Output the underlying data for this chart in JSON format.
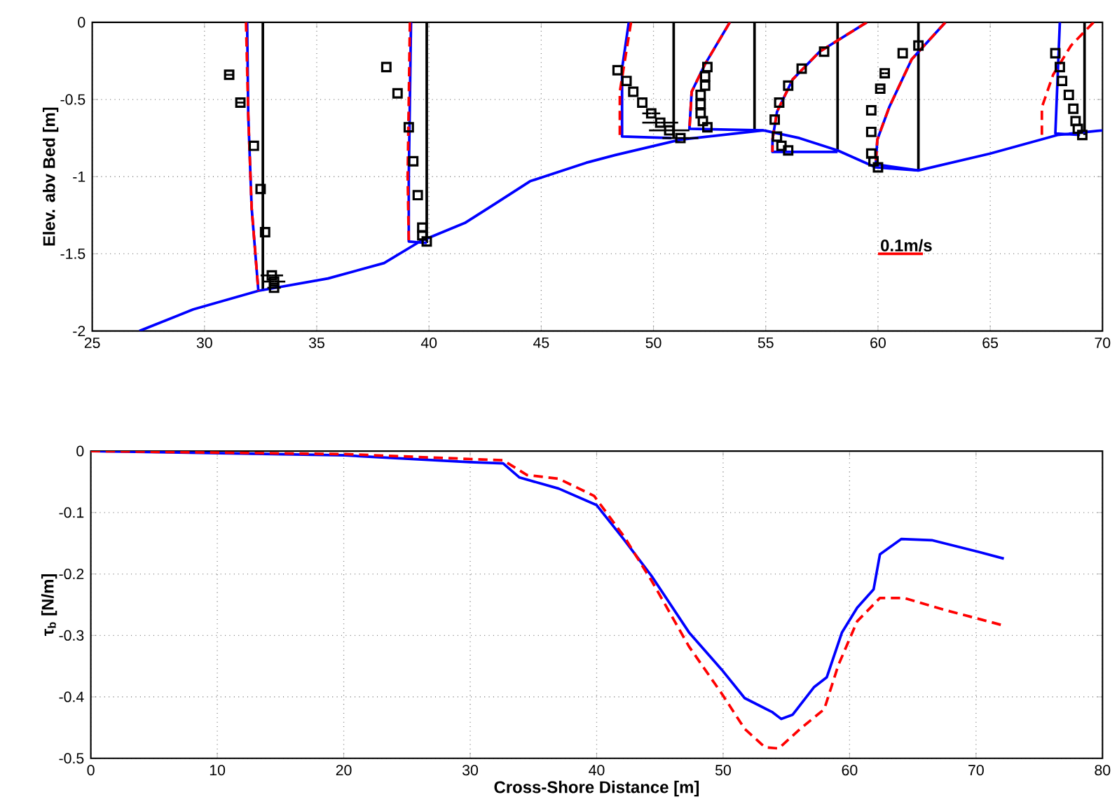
{
  "chart_data": [
    {
      "type": "line",
      "ylabel": "Elev. abv Bed [m]",
      "xlim": [
        25,
        70
      ],
      "ylim": [
        -2,
        0
      ],
      "xticks": [
        25,
        30,
        35,
        40,
        45,
        50,
        55,
        60,
        65,
        70
      ],
      "yticks": [
        -2,
        -1.5,
        -1,
        -0.5,
        0
      ],
      "grid": true,
      "annotations": [
        {
          "text": "0.1m/s",
          "x": 60,
          "y": -1.5
        }
      ],
      "series": [
        {
          "type": "line",
          "color": "#000000",
          "x": [
            32.6,
            32.6,
            null,
            39.9,
            39.9,
            null,
            50.9,
            50.9,
            null,
            54.5,
            54.5,
            null,
            58.2,
            58.2,
            null,
            61.8,
            61.8,
            null,
            69.2,
            69.2
          ],
          "values": [
            -1.74,
            0,
            null,
            -1.43,
            0,
            null,
            -0.75,
            0,
            null,
            -0.7,
            0,
            null,
            -0.83,
            0,
            null,
            -0.96,
            0,
            null,
            -0.73,
            0
          ]
        },
        {
          "type": "line",
          "color": "#0000ff",
          "x": [
            27.1,
            29.5,
            32.4,
            35.5,
            38.0,
            39.6,
            41.6,
            42.9,
            44.5,
            47.0,
            48.3,
            51.2,
            54.9,
            56.5,
            58.2,
            59.9,
            61.8,
            65.0,
            68.0,
            70.0
          ],
          "values": [
            -2,
            -1.86,
            -1.74,
            -1.66,
            -1.56,
            -1.42,
            -1.3,
            -1.18,
            -1.03,
            -0.91,
            -0.86,
            -0.76,
            -0.7,
            -0.75,
            -0.83,
            -0.94,
            -0.96,
            -0.85,
            -0.73,
            -0.7
          ]
        },
        {
          "type": "line",
          "color": "#0000ff",
          "x": [
            31.9,
            31.95,
            32.1,
            32.4,
            null,
            39.2,
            39.15,
            39.1,
            39.1,
            39.9,
            null,
            48.9,
            48.6,
            48.6,
            50.8,
            null,
            53.4,
            52.3,
            51.7,
            51.6,
            54.9,
            null,
            59.5,
            57.4,
            56.2,
            55.5,
            55.3,
            55.3,
            58.2,
            null,
            63.0,
            61.5,
            60.5,
            59.97,
            59.9,
            61.8,
            null,
            68.1,
            67.9,
            69.0
          ],
          "values": [
            0,
            -0.6,
            -1.2,
            -1.74,
            null,
            0,
            -0.5,
            -1.0,
            -1.42,
            -1.43,
            null,
            0,
            -0.3,
            -0.74,
            -0.75,
            null,
            0,
            -0.27,
            -0.45,
            -0.69,
            -0.7,
            null,
            0,
            -0.19,
            -0.37,
            -0.58,
            -0.76,
            -0.84,
            -0.84,
            null,
            0,
            -0.24,
            -0.55,
            -0.76,
            -0.92,
            -0.96,
            null,
            0,
            -0.72,
            -0.73
          ]
        },
        {
          "type": "line",
          "color": "#ff0000",
          "line_style": "dashed",
          "x": [
            31.85,
            31.95,
            32.1,
            32.4,
            null,
            39.15,
            39.1,
            39.05,
            39.1,
            null,
            49.0,
            48.5,
            48.5,
            null,
            53.4,
            52.3,
            51.7,
            51.6,
            null,
            59.5,
            57.4,
            56.2,
            55.5,
            55.3,
            55.3,
            null,
            63.0,
            61.5,
            60.5,
            59.97,
            59.9,
            null,
            69.6,
            68.6,
            67.8,
            67.3,
            67.3
          ],
          "values": [
            0,
            -0.6,
            -1.2,
            -1.74,
            null,
            0,
            -0.5,
            -1.0,
            -1.42,
            null,
            0,
            -0.45,
            -0.74,
            null,
            0,
            -0.27,
            -0.45,
            -0.7,
            null,
            0,
            -0.19,
            -0.37,
            -0.58,
            -0.76,
            -0.84,
            null,
            0,
            -0.24,
            -0.55,
            -0.76,
            -0.92,
            null,
            0,
            -0.15,
            -0.34,
            -0.55,
            -0.74
          ]
        },
        {
          "type": "scatter",
          "color": "#000000",
          "marker": "square",
          "x": [
            31.1,
            31.6,
            32.2,
            32.5,
            32.7,
            33.0,
            33.1,
            33.1,
            38.1,
            38.6,
            39.1,
            39.3,
            39.5,
            39.7,
            39.7,
            39.9,
            48.4,
            48.8,
            49.1,
            49.5,
            49.9,
            50.3,
            50.7,
            51.2,
            52.4,
            52.3,
            52.3,
            52.1,
            52.1,
            52.1,
            52.2,
            52.4,
            57.6,
            56.6,
            56.0,
            55.6,
            55.4,
            55.5,
            55.7,
            56.0,
            61.8,
            61.1,
            60.3,
            60.1,
            59.7,
            59.7,
            59.7,
            59.8,
            60.0,
            67.9,
            68.1,
            68.2,
            68.5,
            68.7,
            68.8,
            68.9,
            69.1
          ],
          "values": [
            -0.34,
            -0.52,
            -0.8,
            -1.08,
            -1.36,
            -1.64,
            -1.68,
            -1.72,
            -0.29,
            -0.46,
            -0.68,
            -0.9,
            -1.12,
            -1.33,
            -1.38,
            -1.42,
            -0.31,
            -0.38,
            -0.45,
            -0.52,
            -0.59,
            -0.65,
            -0.7,
            -0.75,
            -0.29,
            -0.35,
            -0.41,
            -0.47,
            -0.53,
            -0.59,
            -0.64,
            -0.68,
            -0.19,
            -0.3,
            -0.41,
            -0.52,
            -0.63,
            -0.74,
            -0.8,
            -0.83,
            -0.15,
            -0.2,
            -0.33,
            -0.43,
            -0.57,
            -0.71,
            -0.85,
            -0.9,
            -0.94,
            -0.2,
            -0.29,
            -0.38,
            -0.47,
            -0.56,
            -0.64,
            -0.69,
            -0.73
          ],
          "xerrors": [
            0.2,
            0.2,
            null,
            null,
            null,
            0.5,
            0.5,
            0.3,
            null,
            null,
            null,
            null,
            null,
            null,
            null,
            null,
            null,
            null,
            null,
            null,
            0.4,
            0.8,
            0.9,
            0.8,
            null,
            null,
            null,
            null,
            null,
            null,
            null,
            null,
            null,
            null,
            null,
            null,
            null,
            null,
            null,
            null,
            null,
            null,
            0.2,
            0.2,
            null,
            null,
            null,
            null,
            null,
            null,
            null,
            null,
            null,
            null,
            null,
            null,
            null
          ]
        },
        {
          "type": "line",
          "color": "#ff0000",
          "x": [
            60,
            62
          ],
          "values": [
            -1.5,
            -1.5
          ]
        }
      ]
    },
    {
      "type": "line",
      "xlabel": "Cross-Shore Distance [m]",
      "ylabel": "τ$_{b}$ [N/m]",
      "xlim": [
        0,
        80
      ],
      "ylim": [
        -0.5,
        0
      ],
      "xticks": [
        0,
        10,
        20,
        30,
        40,
        50,
        60,
        70,
        80
      ],
      "yticks": [
        -0.5,
        -0.4,
        -0.3,
        -0.2,
        -0.1,
        0
      ],
      "grid": true,
      "series": [
        {
          "type": "line",
          "color": "#0000ff",
          "x": [
            0,
            20.1,
            30.0,
            32.6,
            33.9,
            37.0,
            40.0,
            42.2,
            44.4,
            47.3,
            49.9,
            51.7,
            53.9,
            54.6,
            55.5,
            57.2,
            58.2,
            59.4,
            60.6,
            61.9,
            62.4,
            64.1,
            66.5,
            70.2,
            72.2
          ],
          "values": [
            0,
            -0.007,
            -0.018,
            -0.02,
            -0.043,
            -0.061,
            -0.088,
            -0.145,
            -0.205,
            -0.295,
            -0.356,
            -0.402,
            -0.425,
            -0.436,
            -0.429,
            -0.384,
            -0.368,
            -0.295,
            -0.255,
            -0.225,
            -0.168,
            -0.143,
            -0.145,
            -0.164,
            -0.175
          ]
        },
        {
          "type": "line",
          "color": "#ff0000",
          "line_style": "dashed",
          "x": [
            0,
            20.2,
            32.6,
            34.5,
            37.0,
            39.8,
            42.2,
            44.4,
            47.3,
            49.9,
            51.7,
            53.3,
            54.4,
            56.1,
            58.0,
            59.1,
            60.6,
            62.4,
            64.3,
            67.6,
            70.2,
            72.2
          ],
          "values": [
            0,
            -0.005,
            -0.015,
            -0.039,
            -0.045,
            -0.073,
            -0.14,
            -0.213,
            -0.318,
            -0.395,
            -0.452,
            -0.482,
            -0.484,
            -0.452,
            -0.42,
            -0.349,
            -0.277,
            -0.239,
            -0.239,
            -0.259,
            -0.273,
            -0.284
          ]
        }
      ]
    }
  ]
}
